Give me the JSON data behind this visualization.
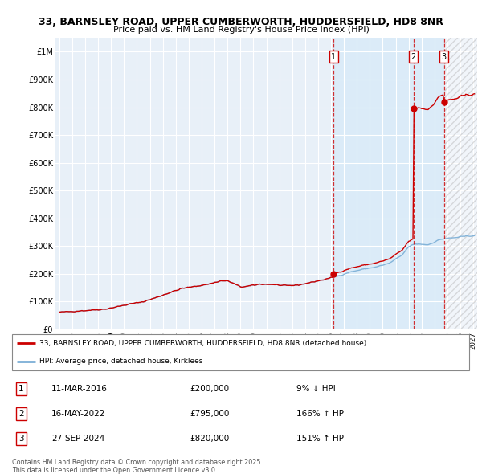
{
  "title_line1": "33, BARNSLEY ROAD, UPPER CUMBERWORTH, HUDDERSFIELD, HD8 8NR",
  "title_line2": "Price paid vs. HM Land Registry's House Price Index (HPI)",
  "ylim": [
    0,
    1050000
  ],
  "yticks": [
    0,
    100000,
    200000,
    300000,
    400000,
    500000,
    600000,
    700000,
    800000,
    900000,
    1000000
  ],
  "ytick_labels": [
    "£0",
    "£100K",
    "£200K",
    "£300K",
    "£400K",
    "£500K",
    "£600K",
    "£700K",
    "£800K",
    "£900K",
    "£1M"
  ],
  "xlim_start": 1994.7,
  "xlim_end": 2027.3,
  "hpi_color": "#7aaed6",
  "sale_color": "#cc0000",
  "bg_color": "#ffffff",
  "plot_bg_color": "#e8f0f8",
  "grid_color": "#ffffff",
  "legend_label_sale": "33, BARNSLEY ROAD, UPPER CUMBERWORTH, HUDDERSFIELD, HD8 8NR (detached house)",
  "legend_label_hpi": "HPI: Average price, detached house, Kirklees",
  "footnote": "Contains HM Land Registry data © Crown copyright and database right 2025.\nThis data is licensed under the Open Government Licence v3.0.",
  "sales": [
    {
      "num": 1,
      "date_str": "11-MAR-2016",
      "price": 200000,
      "pct": "9% ↓ HPI",
      "year": 2016.19
    },
    {
      "num": 2,
      "date_str": "16-MAY-2022",
      "price": 795000,
      "pct": "166% ↑ HPI",
      "year": 2022.37
    },
    {
      "num": 3,
      "date_str": "27-SEP-2024",
      "price": 820000,
      "pct": "151% ↑ HPI",
      "year": 2024.74
    }
  ],
  "future_hatch_start": 2024.74,
  "future_hatch_end": 2027.3,
  "shaded_start": 2016.19
}
